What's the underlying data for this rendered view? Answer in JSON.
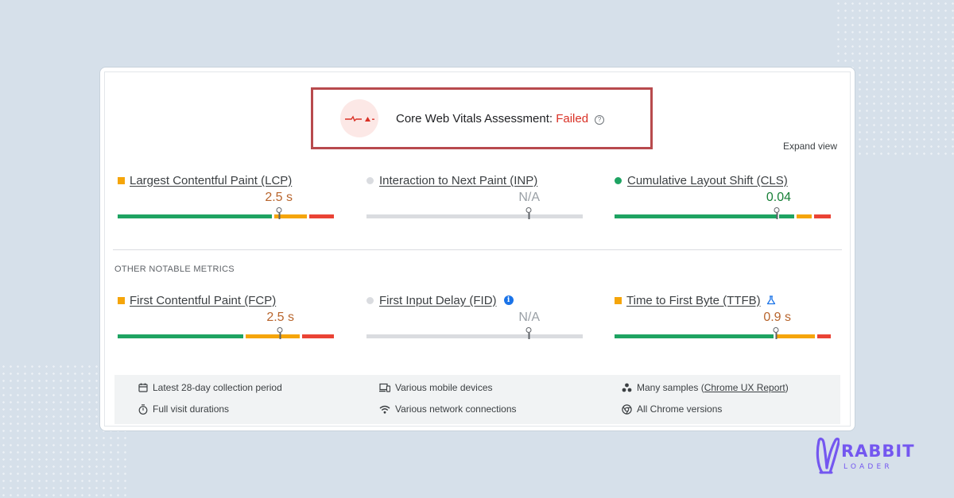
{
  "assessment": {
    "title": "Core Web Vitals Assessment: ",
    "status": "Failed",
    "status_color": "#d93025"
  },
  "expand_view_label": "Expand view",
  "section_label": "OTHER NOTABLE METRICS",
  "colors": {
    "good": "#1ea362",
    "needs_improvement": "#f5a50a",
    "poor": "#ea4335",
    "no_data": "#dadce0"
  },
  "metrics": [
    {
      "title": "Largest Contentful Paint (LCP)",
      "value": "2.5 s",
      "indicator": "orange-square",
      "distribution_percent": {
        "good": 71.5,
        "needs_improvement": 17,
        "poor": 11.5
      },
      "marker_percent": 74.5
    },
    {
      "title": "Interaction to Next Paint (INP)",
      "value": "N/A",
      "indicator": "grey-circle",
      "marker_percent": 75
    },
    {
      "title": "Cumulative Layout Shift (CLS)",
      "value": "0.04",
      "indicator": "green-circle",
      "distribution_percent": {
        "good": 82,
        "needs_improvement": 8,
        "poor": 10
      },
      "marker_percent": 75
    },
    {
      "title": "First Contentful Paint (FCP)",
      "value": "2.5 s",
      "indicator": "orange-square",
      "distribution_percent": {
        "good": 59,
        "needs_improvement": 25,
        "poor": 16
      },
      "marker_percent": 75
    },
    {
      "title": "First Input Delay (FID)",
      "value": "N/A",
      "indicator": "grey-circle",
      "marker_percent": 75
    },
    {
      "title": "Time to First Byte (TTFB)",
      "value": "0.9 s",
      "indicator": "orange-square",
      "distribution_percent": {
        "good": 74,
        "needs_improvement": 19,
        "poor": 7
      },
      "marker_percent": 74.5
    }
  ],
  "footer": {
    "collection_period": "Latest 28-day collection period",
    "visit_durations": "Full visit durations",
    "devices": "Various mobile devices",
    "network": "Various network connections",
    "samples_prefix": "Many samples (",
    "samples_link": "Chrome UX Report",
    "samples_suffix": ")",
    "chrome_versions": "All Chrome versions"
  },
  "logo": {
    "main": "RABBIT",
    "sub": "LOADER",
    "color": "#7457f0"
  }
}
